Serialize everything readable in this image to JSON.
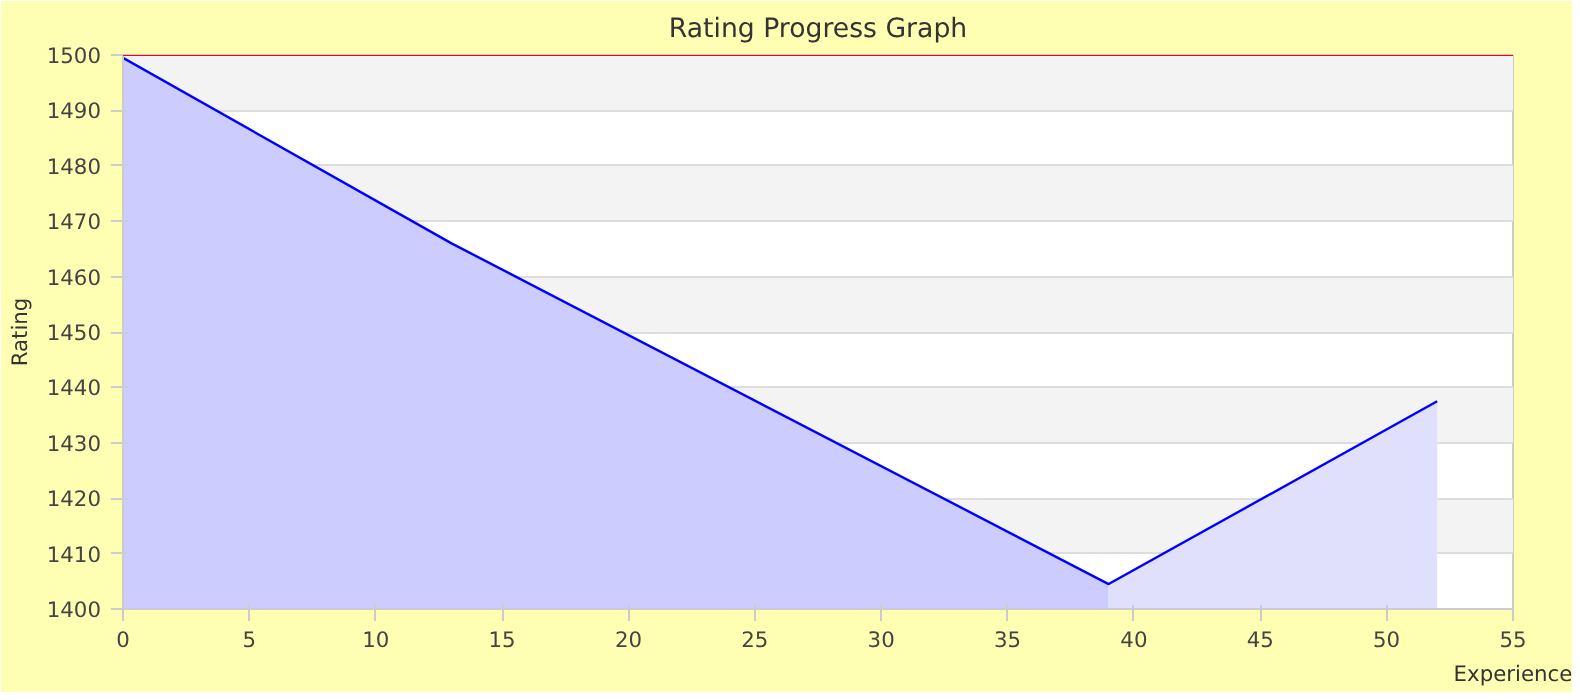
{
  "chart_data": {
    "type": "area",
    "title": "Rating Progress Graph",
    "xlabel": "Experience",
    "ylabel": "Rating",
    "xlim": [
      0,
      55
    ],
    "xticks": [
      0,
      5,
      10,
      15,
      20,
      25,
      30,
      35,
      40,
      45,
      50,
      55
    ],
    "ylim": [
      1400,
      1500
    ],
    "yticks": [
      1400,
      1410,
      1420,
      1430,
      1440,
      1450,
      1460,
      1470,
      1480,
      1490,
      1500
    ],
    "grid": "y",
    "ref_lines": [
      {
        "axis": "y",
        "value": 1500,
        "color": "#ff0000"
      }
    ],
    "series": [
      {
        "color": "#ccccff",
        "x": [
          0,
          13,
          39
        ],
        "values": [
          1499.5,
          1466,
          1404.5
        ]
      },
      {
        "color": "#e0e0fc",
        "x": [
          39,
          52
        ],
        "values": [
          1404.5,
          1437.5
        ]
      },
      {
        "type": "line",
        "color": "#0000ff",
        "x": [
          0,
          13,
          39,
          52
        ],
        "values": [
          1499.5,
          1466,
          1404.5,
          1437.5
        ]
      }
    ]
  }
}
